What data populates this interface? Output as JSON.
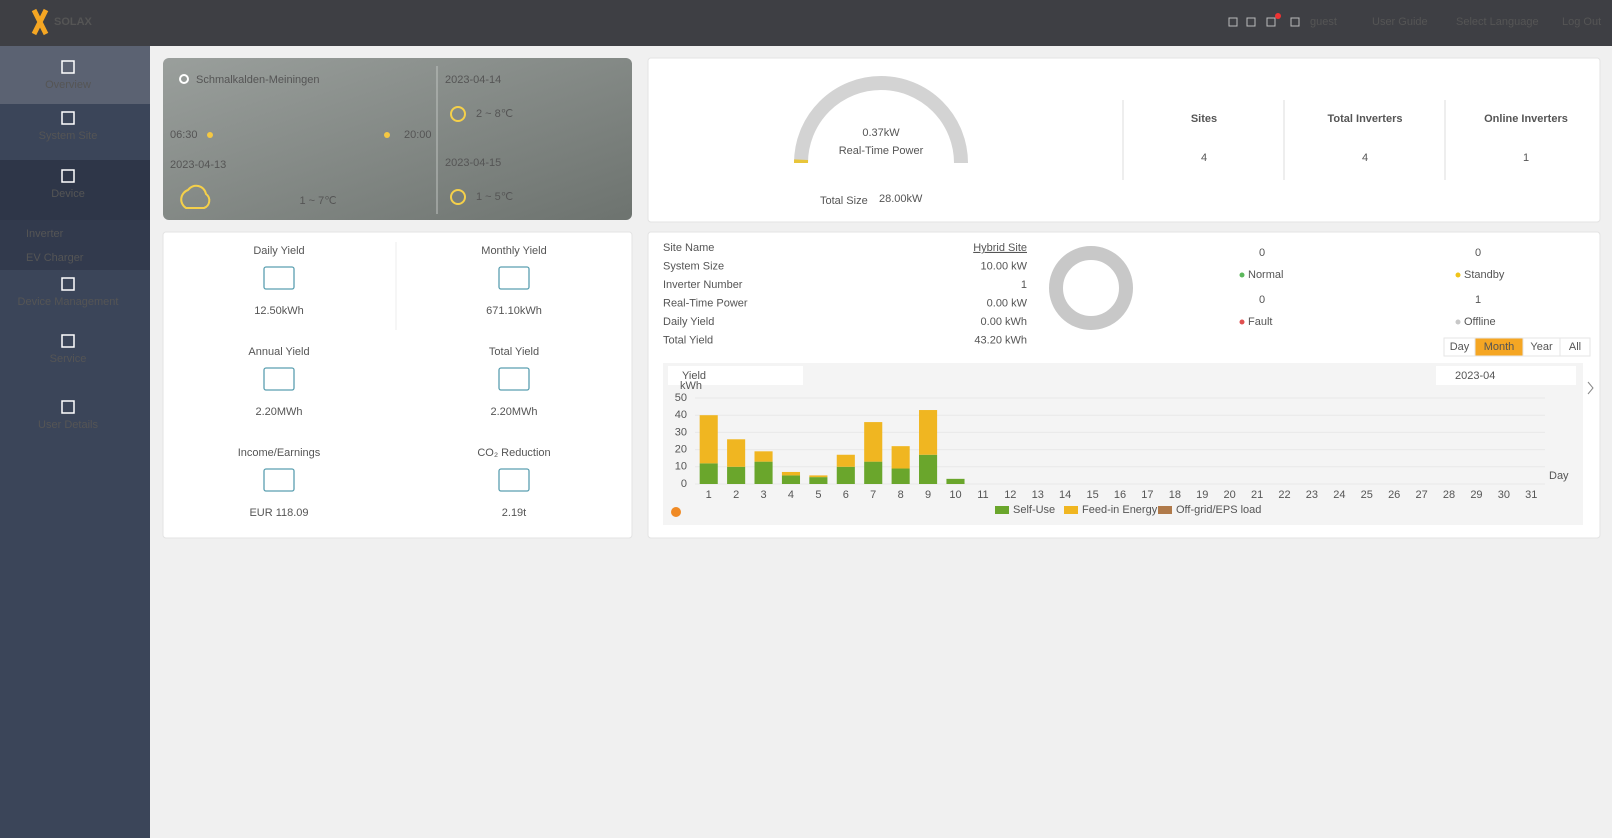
{
  "header": {
    "logo": "SOLAX",
    "user": "guest",
    "links": [
      "User Guide",
      "Select Language",
      "Log Out"
    ]
  },
  "sidebar": {
    "items": [
      "Overview",
      "System Site",
      "Device",
      "Device Management",
      "Service",
      "User Details"
    ],
    "device_submenu": [
      "Inverter",
      "EV Charger"
    ]
  },
  "weather": {
    "location": "Schmalkalden-Meiningen",
    "sunrise": "06:30",
    "sunset": "20:00",
    "today": {
      "date": "2023-04-13",
      "temp": "1 ~ 7℃"
    },
    "forecast": [
      {
        "date": "2023-04-14",
        "temp": "2 ~ 8℃"
      },
      {
        "date": "2023-04-15",
        "temp": "1 ~ 5℃"
      }
    ]
  },
  "yield_summary": [
    {
      "label": "Daily Yield",
      "value": "12.50kWh"
    },
    {
      "label": "Monthly Yield",
      "value": "671.10kWh"
    },
    {
      "label": "Annual Yield",
      "value": "2.20MWh"
    },
    {
      "label": "Total Yield",
      "value": "2.20MWh"
    },
    {
      "label": "Income/Earnings",
      "value": "EUR 118.09"
    },
    {
      "label": "CO₂ Reduction",
      "value": "2.19t"
    }
  ],
  "power": {
    "gauge": {
      "value": 0.37,
      "label": "0.37kW",
      "max": 28,
      "max_label": "28.00kW"
    },
    "gauge_title": "Real-Time Power",
    "total_size_label": "Total Size",
    "stats": [
      {
        "label": "Sites",
        "value": 4
      },
      {
        "label": "Total Inverters",
        "value": 4
      },
      {
        "label": "Online Inverters",
        "value": 1
      }
    ]
  },
  "site": {
    "info": [
      [
        "Site Name",
        "Hybrid Site"
      ],
      [
        "System Size",
        "10.00 kW"
      ],
      [
        "Inverter Number",
        "1"
      ],
      [
        "Real-Time Power",
        "0.00 kW"
      ],
      [
        "Daily Yield",
        "0.00 kWh"
      ],
      [
        "Total Yield",
        "43.20 kWh"
      ]
    ],
    "status": [
      {
        "label": "Normal",
        "count": 0,
        "color": "#5cb85c"
      },
      {
        "label": "Standby",
        "count": 0,
        "color": "#f0c419"
      },
      {
        "label": "Fault",
        "count": 0,
        "color": "#e05050"
      },
      {
        "label": "Offline",
        "count": 1,
        "color": "#c8c8c8"
      }
    ],
    "tabs": [
      "Day",
      "Month",
      "Year",
      "All"
    ],
    "active_tab": 1,
    "metric_select": "Yield",
    "date": "2023-04"
  },
  "chart_data": {
    "type": "bar",
    "stacked": true,
    "x_label": "Day",
    "y_unit": "kWh",
    "categories": [
      "1",
      "2",
      "3",
      "4",
      "5",
      "6",
      "7",
      "8",
      "9",
      "10",
      "11",
      "12",
      "13",
      "14",
      "15",
      "16",
      "17",
      "18",
      "19",
      "20",
      "21",
      "22",
      "23",
      "24",
      "25",
      "26",
      "27",
      "28",
      "29",
      "30",
      "31"
    ],
    "ylim": [
      0,
      50
    ],
    "yticks": [
      0,
      10,
      20,
      30,
      40,
      50
    ],
    "series": [
      {
        "name": "Self-Use",
        "color": "#6aa62c",
        "values": [
          12,
          10,
          13,
          5,
          4,
          10,
          13,
          9,
          17,
          3,
          null,
          null,
          null,
          null,
          null,
          null,
          null,
          null,
          null,
          null,
          null,
          null,
          null,
          null,
          null,
          null,
          null,
          null,
          null,
          null,
          null
        ]
      },
      {
        "name": "Feed-in Energy",
        "color": "#f0b621",
        "values": [
          28,
          16,
          6,
          2,
          1,
          7,
          23,
          13,
          26,
          0,
          null,
          null,
          null,
          null,
          null,
          null,
          null,
          null,
          null,
          null,
          null,
          null,
          null,
          null,
          null,
          null,
          null,
          null,
          null,
          null,
          null
        ]
      },
      {
        "name": "Off-grid/EPS load",
        "color": "#b07a4a",
        "values": [
          null,
          null,
          null,
          null,
          null,
          null,
          null,
          null,
          null,
          null,
          null,
          null,
          null,
          null,
          null,
          null,
          null,
          null,
          null,
          null,
          null,
          null,
          null,
          null,
          null,
          null,
          null,
          null,
          null,
          null,
          null
        ]
      }
    ]
  }
}
